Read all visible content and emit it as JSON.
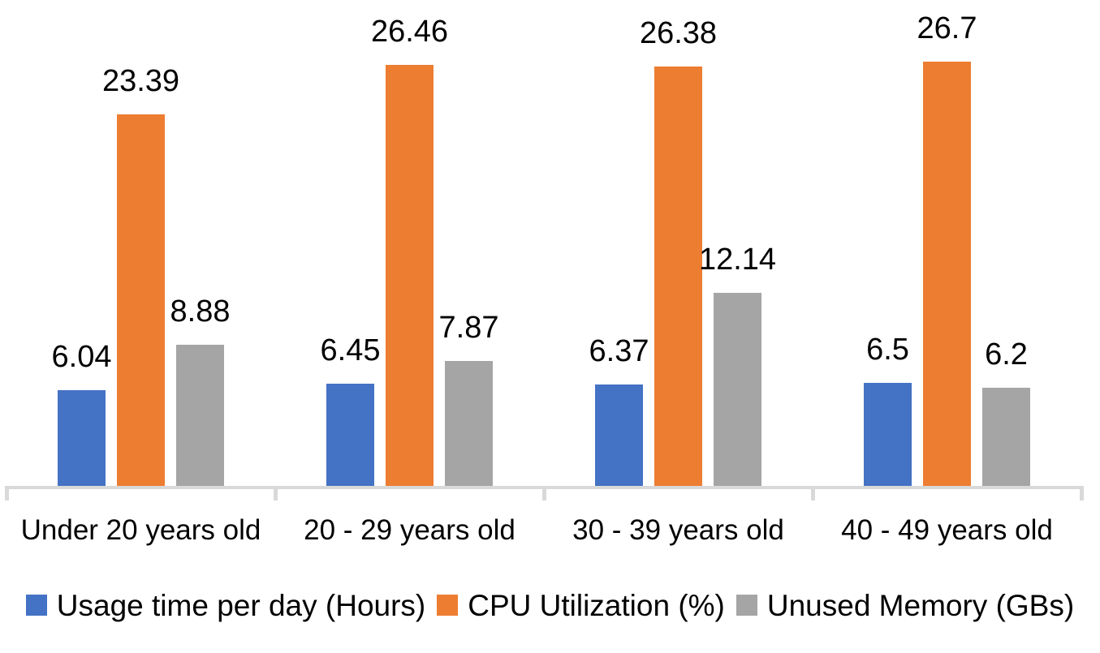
{
  "chart_data": {
    "type": "bar",
    "title": "",
    "xlabel": "",
    "ylabel": "",
    "categories": [
      "Under 20 years old",
      "20 - 29 years old",
      "30 - 39 years old",
      "40 - 49 years old"
    ],
    "series": [
      {
        "name": "Usage time per day (Hours)",
        "color": "#4472C4",
        "values": [
          6.04,
          6.45,
          6.37,
          6.5
        ],
        "labels": [
          "6.04",
          "6.45",
          "6.37",
          "6.5"
        ]
      },
      {
        "name": "CPU Utilization (%)",
        "color": "#ED7D31",
        "values": [
          23.39,
          26.46,
          26.38,
          26.7
        ],
        "labels": [
          "23.39",
          "26.46",
          "26.38",
          "26.7"
        ]
      },
      {
        "name": "Unused Memory (GBs)",
        "color": "#A5A5A5",
        "values": [
          8.88,
          7.87,
          12.14,
          6.2
        ],
        "labels": [
          "8.88",
          "7.87",
          "12.14",
          "6.2"
        ]
      }
    ],
    "ylim": [
      0,
      30
    ],
    "grid": false,
    "y_axis_visible": false,
    "data_labels": true,
    "legend_position": "bottom",
    "axis_color": "#D9D9D9",
    "label_color": "#000000"
  }
}
